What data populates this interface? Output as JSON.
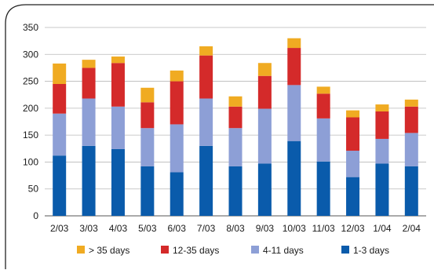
{
  "chart_data": {
    "type": "bar",
    "stacked": true,
    "categories": [
      "2/03",
      "3/03",
      "4/03",
      "5/03",
      "6/03",
      "7/03",
      "8/03",
      "9/03",
      "10/03",
      "11/03",
      "12/03",
      "1/04",
      "2/04"
    ],
    "series": [
      {
        "name": "1-3 days",
        "color": "#0a5bab",
        "values": [
          112,
          130,
          124,
          92,
          81,
          130,
          92,
          97,
          139,
          101,
          72,
          97,
          92
        ]
      },
      {
        "name": "4-11 days",
        "color": "#8d9fd6",
        "values": [
          78,
          88,
          79,
          71,
          89,
          88,
          71,
          102,
          104,
          80,
          49,
          46,
          62
        ]
      },
      {
        "name": "12-35 days",
        "color": "#d42a2a",
        "values": [
          55,
          57,
          81,
          48,
          80,
          80,
          40,
          61,
          69,
          46,
          62,
          51,
          49
        ]
      },
      {
        "name": "> 35 days",
        "color": "#f0ab22",
        "values": [
          38,
          15,
          12,
          27,
          20,
          17,
          19,
          24,
          18,
          13,
          13,
          13,
          13
        ]
      }
    ],
    "legend_order": [
      "> 35 days",
      "12-35 days",
      "4-11 days",
      "1-3 days"
    ],
    "ylim": [
      0,
      350
    ],
    "yticks": [
      0,
      50,
      100,
      150,
      200,
      250,
      300,
      350
    ],
    "grid": true,
    "legend_position": "bottom",
    "title": "",
    "xlabel": "",
    "ylabel": ""
  }
}
